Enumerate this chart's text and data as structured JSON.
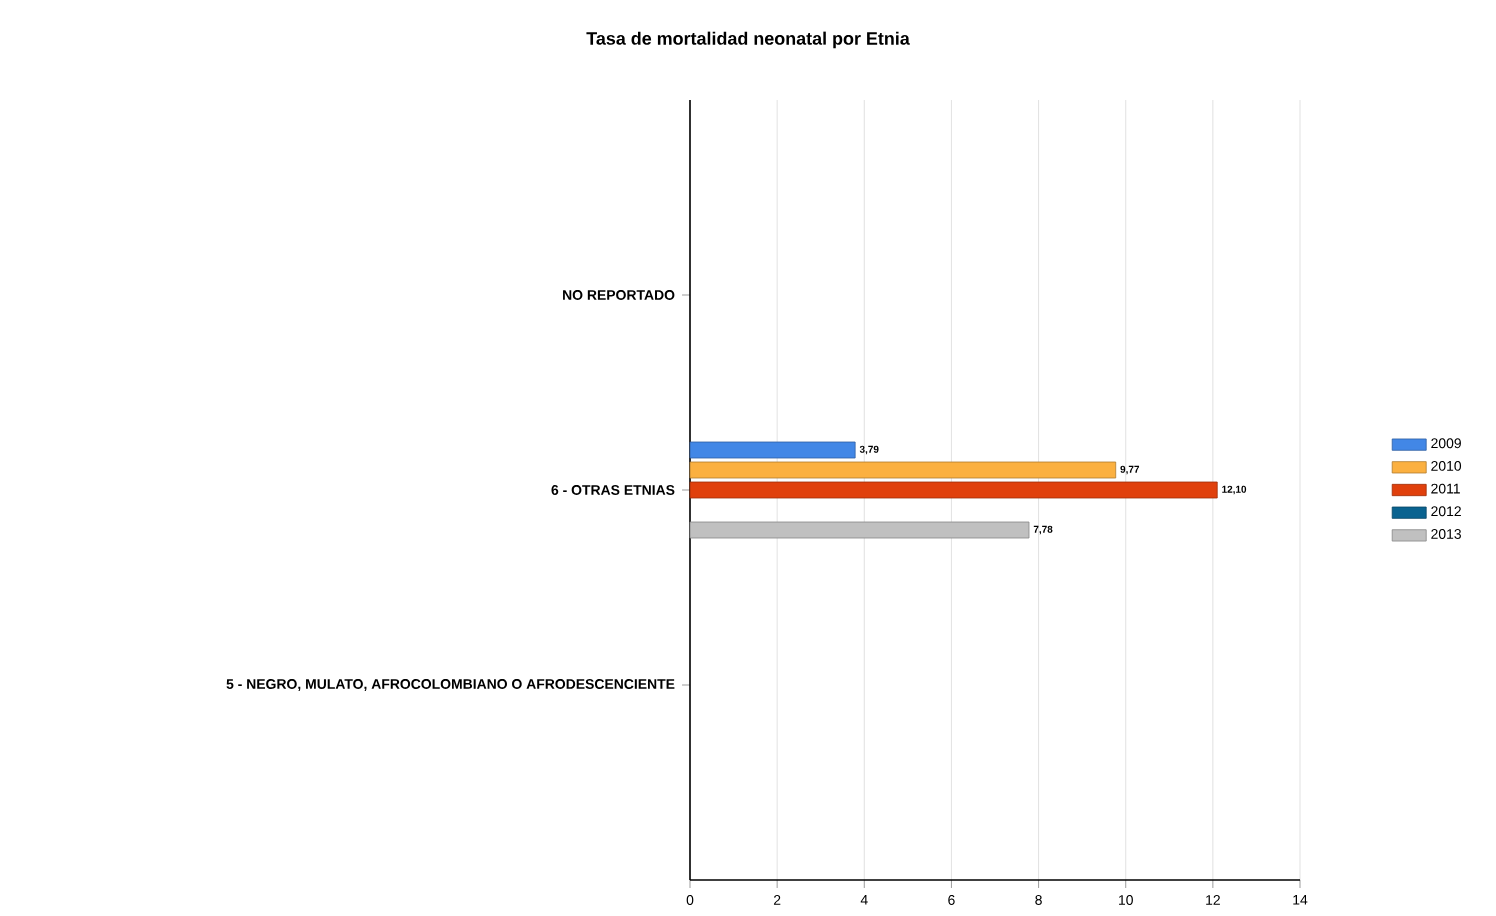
{
  "chart_data": {
    "type": "bar",
    "title": "Tasa de mortalidad neonatal por Etnia",
    "orientation": "horizontal",
    "categories": [
      "NO REPORTADO",
      "6 - OTRAS ETNIAS",
      "5 - NEGRO, MULATO, AFROCOLOMBIANO O AFRODESCENCIENTE"
    ],
    "series": [
      {
        "name": "2009",
        "color": "#4287e6",
        "values": [
          null,
          3.79,
          null
        ],
        "value_labels": [
          null,
          "3,79",
          null
        ]
      },
      {
        "name": "2010",
        "color": "#fbb040",
        "values": [
          null,
          9.77,
          null
        ],
        "value_labels": [
          null,
          "9,77",
          null
        ]
      },
      {
        "name": "2011",
        "color": "#e0400c",
        "values": [
          null,
          12.1,
          null
        ],
        "value_labels": [
          null,
          "12,10",
          null
        ]
      },
      {
        "name": "2012",
        "color": "#0a6390",
        "values": [
          null,
          null,
          null
        ],
        "value_labels": [
          null,
          null,
          null
        ]
      },
      {
        "name": "2013",
        "color": "#c0c0c0",
        "values": [
          null,
          7.78,
          null
        ],
        "value_labels": [
          null,
          "7,78",
          null
        ]
      }
    ],
    "xlim": [
      0,
      14
    ],
    "xticks": [
      0,
      2,
      4,
      6,
      8,
      10,
      12,
      14
    ],
    "grid": "x",
    "legend": "right"
  }
}
